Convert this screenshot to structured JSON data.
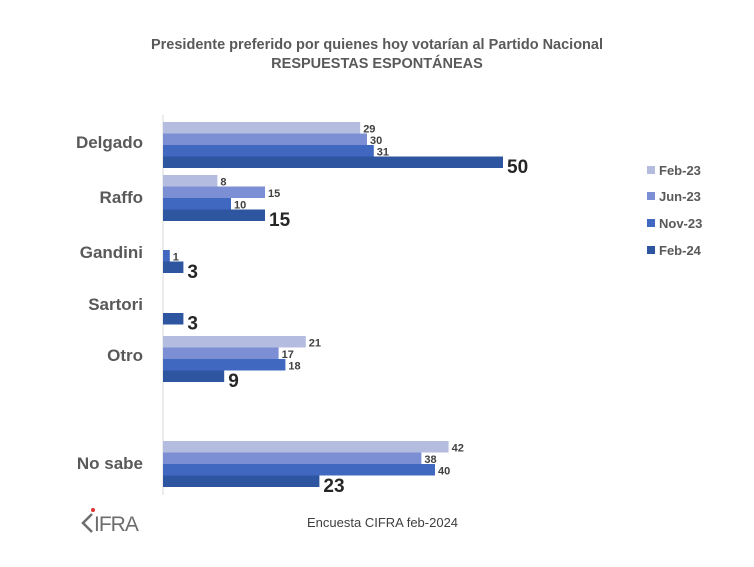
{
  "chart_data": {
    "type": "bar",
    "orientation": "horizontal",
    "title": "Presidente preferido por quienes hoy votarían al Partido Nacional",
    "subtitle": "RESPUESTAS ESPONTÁNEAS",
    "categories": [
      "Delgado",
      "Raffo",
      "Gandini",
      "Sartori",
      "Otro",
      "No sabe"
    ],
    "series": [
      {
        "name": "Feb-23",
        "color": "#b4bde0",
        "values": [
          29,
          8,
          null,
          null,
          21,
          42
        ]
      },
      {
        "name": "Jun-23",
        "color": "#7d8fd4",
        "values": [
          30,
          15,
          null,
          null,
          17,
          38
        ]
      },
      {
        "name": "Nov-23",
        "color": "#4068c0",
        "values": [
          31,
          10,
          1,
          null,
          18,
          40
        ]
      },
      {
        "name": "Feb-24",
        "color": "#2e55a0",
        "values": [
          50,
          15,
          3,
          3,
          9,
          23
        ]
      }
    ],
    "xlim": [
      0,
      50
    ],
    "grid": false,
    "legend": "right",
    "xlabel": "",
    "ylabel": ""
  },
  "footer": {
    "source": "Encuesta CIFRA feb-2024",
    "logo_text": "CIFRA"
  }
}
